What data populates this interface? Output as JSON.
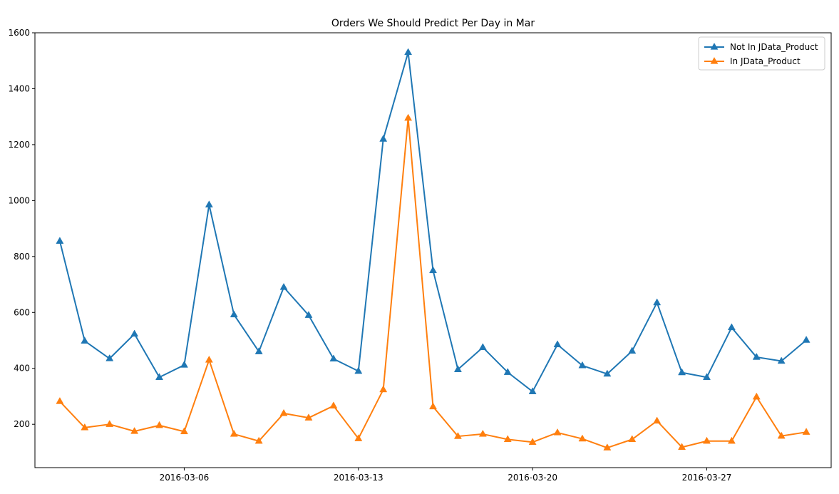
{
  "chart_data": {
    "type": "line",
    "title": "Orders We Should Predict Per Day in Mar",
    "xlabel": "",
    "ylabel": "",
    "x_start": "2016-03-01",
    "x_end": "2016-03-31",
    "xlim": [
      "2016-02-29",
      "2016-04-01"
    ],
    "ylim": [
      45,
      1600
    ],
    "yticks": [
      200,
      400,
      600,
      800,
      1000,
      1200,
      1400,
      1600
    ],
    "xticks": [
      "2016-03-06",
      "2016-03-13",
      "2016-03-20",
      "2016-03-27"
    ],
    "legend_position": "upper right",
    "grid": false,
    "series": [
      {
        "name": "Not In JData_Product",
        "color": "#1f77b4",
        "marker": "triangle-up",
        "values": [
          855,
          498,
          435,
          523,
          368,
          412,
          985,
          592,
          460,
          690,
          590,
          434,
          390,
          1220,
          1530,
          750,
          396,
          475,
          386,
          317,
          485,
          410,
          380,
          462,
          635,
          385,
          368,
          546,
          440,
          426,
          501
        ]
      },
      {
        "name": "In JData_Product",
        "color": "#ff7f0e",
        "marker": "triangle-up",
        "values": [
          282,
          188,
          200,
          175,
          196,
          174,
          430,
          165,
          140,
          239,
          223,
          266,
          149,
          324,
          1295,
          263,
          157,
          165,
          146,
          136,
          170,
          148,
          116,
          146,
          212,
          118,
          140,
          140,
          298,
          158,
          172
        ]
      }
    ]
  }
}
